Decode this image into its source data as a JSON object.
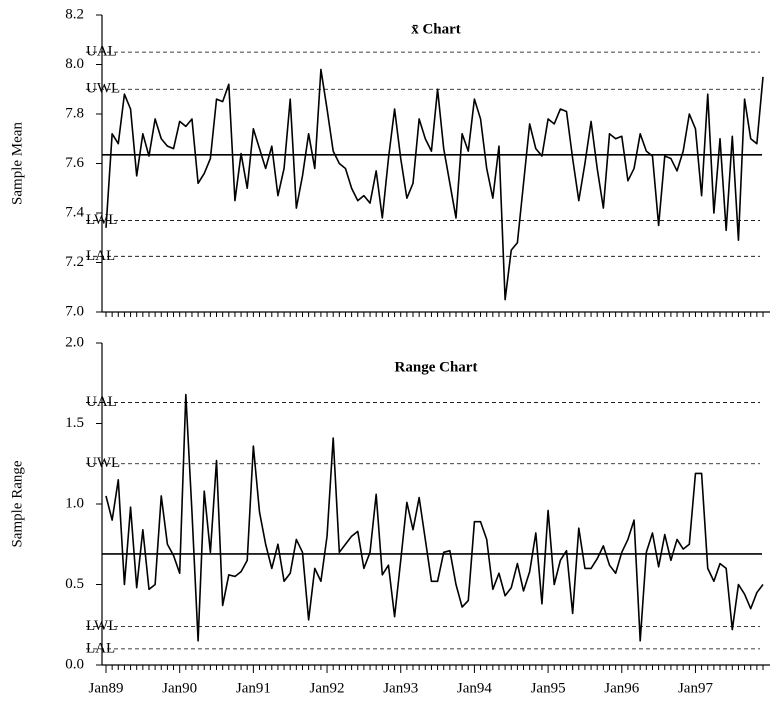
{
  "chart_data": [
    {
      "type": "line",
      "title": "x̄ Chart",
      "y_label": "Sample Mean",
      "categories": [
        null,
        null,
        null,
        null,
        null,
        null,
        null,
        null,
        null,
        null,
        null,
        null,
        null,
        null,
        null,
        null,
        null,
        null,
        null,
        null,
        null,
        null,
        null,
        null,
        null,
        null,
        null,
        null,
        null,
        null,
        null,
        null,
        null,
        null,
        null,
        null,
        null,
        null,
        null,
        null,
        null,
        null,
        null,
        null,
        null,
        null,
        null,
        null,
        null,
        null,
        null,
        null,
        null,
        null,
        null,
        null,
        null,
        null,
        null,
        null,
        null,
        null,
        null,
        null,
        null,
        null,
        null,
        null,
        null,
        null,
        null,
        null,
        null,
        null,
        null,
        null,
        null,
        null,
        null,
        null,
        null,
        null,
        null,
        null,
        null,
        null,
        null,
        null,
        null,
        null,
        null,
        null,
        null,
        null,
        null,
        null,
        null,
        null,
        null,
        null,
        null,
        null,
        null,
        null,
        null,
        null,
        null,
        null
      ],
      "series": [
        {
          "color": "#000000",
          "values": [
            7.34,
            7.72,
            7.68,
            7.88,
            7.82,
            7.55,
            7.72,
            7.63,
            7.78,
            7.7,
            7.67,
            7.66,
            7.77,
            7.75,
            7.78,
            7.52,
            7.56,
            7.62,
            7.86,
            7.85,
            7.92,
            7.45,
            7.64,
            7.5,
            7.74,
            7.66,
            7.58,
            7.67,
            7.47,
            7.58,
            7.86,
            7.42,
            7.55,
            7.72,
            7.58,
            7.98,
            7.82,
            7.65,
            7.6,
            7.58,
            7.5,
            7.45,
            7.47,
            7.44,
            7.57,
            7.38,
            7.62,
            7.82,
            7.62,
            7.46,
            7.52,
            7.78,
            7.7,
            7.65,
            7.9,
            7.66,
            7.52,
            7.38,
            7.72,
            7.65,
            7.86,
            7.78,
            7.58,
            7.46,
            7.67,
            7.05,
            7.25,
            7.28,
            7.52,
            7.76,
            7.66,
            7.63,
            7.78,
            7.76,
            7.82,
            7.81,
            7.62,
            7.45,
            7.6,
            7.77,
            7.58,
            7.42,
            7.72,
            7.7,
            7.71,
            7.53,
            7.58,
            7.72,
            7.65,
            7.63,
            7.35,
            7.63,
            7.62,
            7.57,
            7.65,
            7.8,
            7.74,
            7.47,
            7.88,
            7.4,
            7.7,
            7.33,
            7.71,
            7.29,
            7.86,
            7.7,
            7.68,
            7.95
          ]
        }
      ],
      "center_line": 7.635,
      "reference_lines": [
        {
          "label": "UAL",
          "value": 8.05
        },
        {
          "label": "UWL",
          "value": 7.9
        },
        {
          "label": "LWL",
          "value": 7.37
        },
        {
          "label": "LAL",
          "value": 7.225
        }
      ],
      "ylim": [
        7.0,
        8.2
      ],
      "yticks": [
        {
          "value": 7,
          "label": "7.0"
        },
        7.2,
        7.4,
        7.6,
        7.8,
        {
          "value": 8,
          "label": "8.0"
        },
        8.2
      ]
    },
    {
      "type": "line",
      "title": "Range Chart",
      "y_label": "Sample Range",
      "categories": [
        "Jan89",
        null,
        null,
        null,
        null,
        null,
        null,
        null,
        null,
        null,
        null,
        null,
        "Jan90",
        null,
        null,
        null,
        null,
        null,
        null,
        null,
        null,
        null,
        null,
        null,
        "Jan91",
        null,
        null,
        null,
        null,
        null,
        null,
        null,
        null,
        null,
        null,
        null,
        "Jan92",
        null,
        null,
        null,
        null,
        null,
        null,
        null,
        null,
        null,
        null,
        null,
        "Jan93",
        null,
        null,
        null,
        null,
        null,
        null,
        null,
        null,
        null,
        null,
        null,
        "Jan94",
        null,
        null,
        null,
        null,
        null,
        null,
        null,
        null,
        null,
        null,
        null,
        "Jan95",
        null,
        null,
        null,
        null,
        null,
        null,
        null,
        null,
        null,
        null,
        null,
        "Jan96",
        null,
        null,
        null,
        null,
        null,
        null,
        null,
        null,
        null,
        null,
        null,
        "Jan97",
        null,
        null,
        null,
        null,
        null,
        null,
        null,
        null,
        null,
        null,
        null
      ],
      "series": [
        {
          "color": "#000000",
          "values": [
            1.05,
            0.9,
            1.15,
            0.5,
            0.98,
            0.48,
            0.84,
            0.47,
            0.5,
            1.05,
            0.75,
            0.68,
            0.57,
            1.68,
            0.95,
            0.15,
            1.08,
            0.7,
            1.27,
            0.37,
            0.56,
            0.55,
            0.58,
            0.65,
            1.36,
            0.95,
            0.75,
            0.6,
            0.75,
            0.52,
            0.57,
            0.78,
            0.7,
            0.28,
            0.6,
            0.52,
            0.8,
            1.41,
            0.7,
            0.75,
            0.8,
            0.83,
            0.6,
            0.7,
            1.06,
            0.56,
            0.62,
            0.3,
            0.65,
            1.01,
            0.84,
            1.04,
            0.78,
            0.52,
            0.52,
            0.7,
            0.71,
            0.5,
            0.36,
            0.4,
            0.89,
            0.89,
            0.78,
            0.47,
            0.57,
            0.43,
            0.48,
            0.63,
            0.46,
            0.58,
            0.82,
            0.38,
            0.96,
            0.5,
            0.65,
            0.71,
            0.32,
            0.85,
            0.6,
            0.6,
            0.66,
            0.74,
            0.62,
            0.57,
            0.7,
            0.78,
            0.9,
            0.15,
            0.7,
            0.82,
            0.61,
            0.81,
            0.65,
            0.78,
            0.72,
            0.75,
            1.19,
            1.19,
            0.6,
            0.52,
            0.63,
            0.6,
            0.22,
            0.5,
            0.44,
            0.35,
            0.45,
            0.5
          ]
        }
      ],
      "center_line": 0.69,
      "reference_lines": [
        {
          "label": "UAL",
          "value": 1.63
        },
        {
          "label": "UWL",
          "value": 1.25
        },
        {
          "label": "LWL",
          "value": 0.24
        },
        {
          "label": "LAL",
          "value": 0.1
        }
      ],
      "ylim": [
        0,
        2.0
      ],
      "yticks": [
        {
          "value": 0,
          "label": "0.0"
        },
        0.5,
        {
          "value": 1,
          "label": "1.0"
        },
        1.5,
        {
          "value": 2,
          "label": "2.0"
        }
      ]
    }
  ]
}
